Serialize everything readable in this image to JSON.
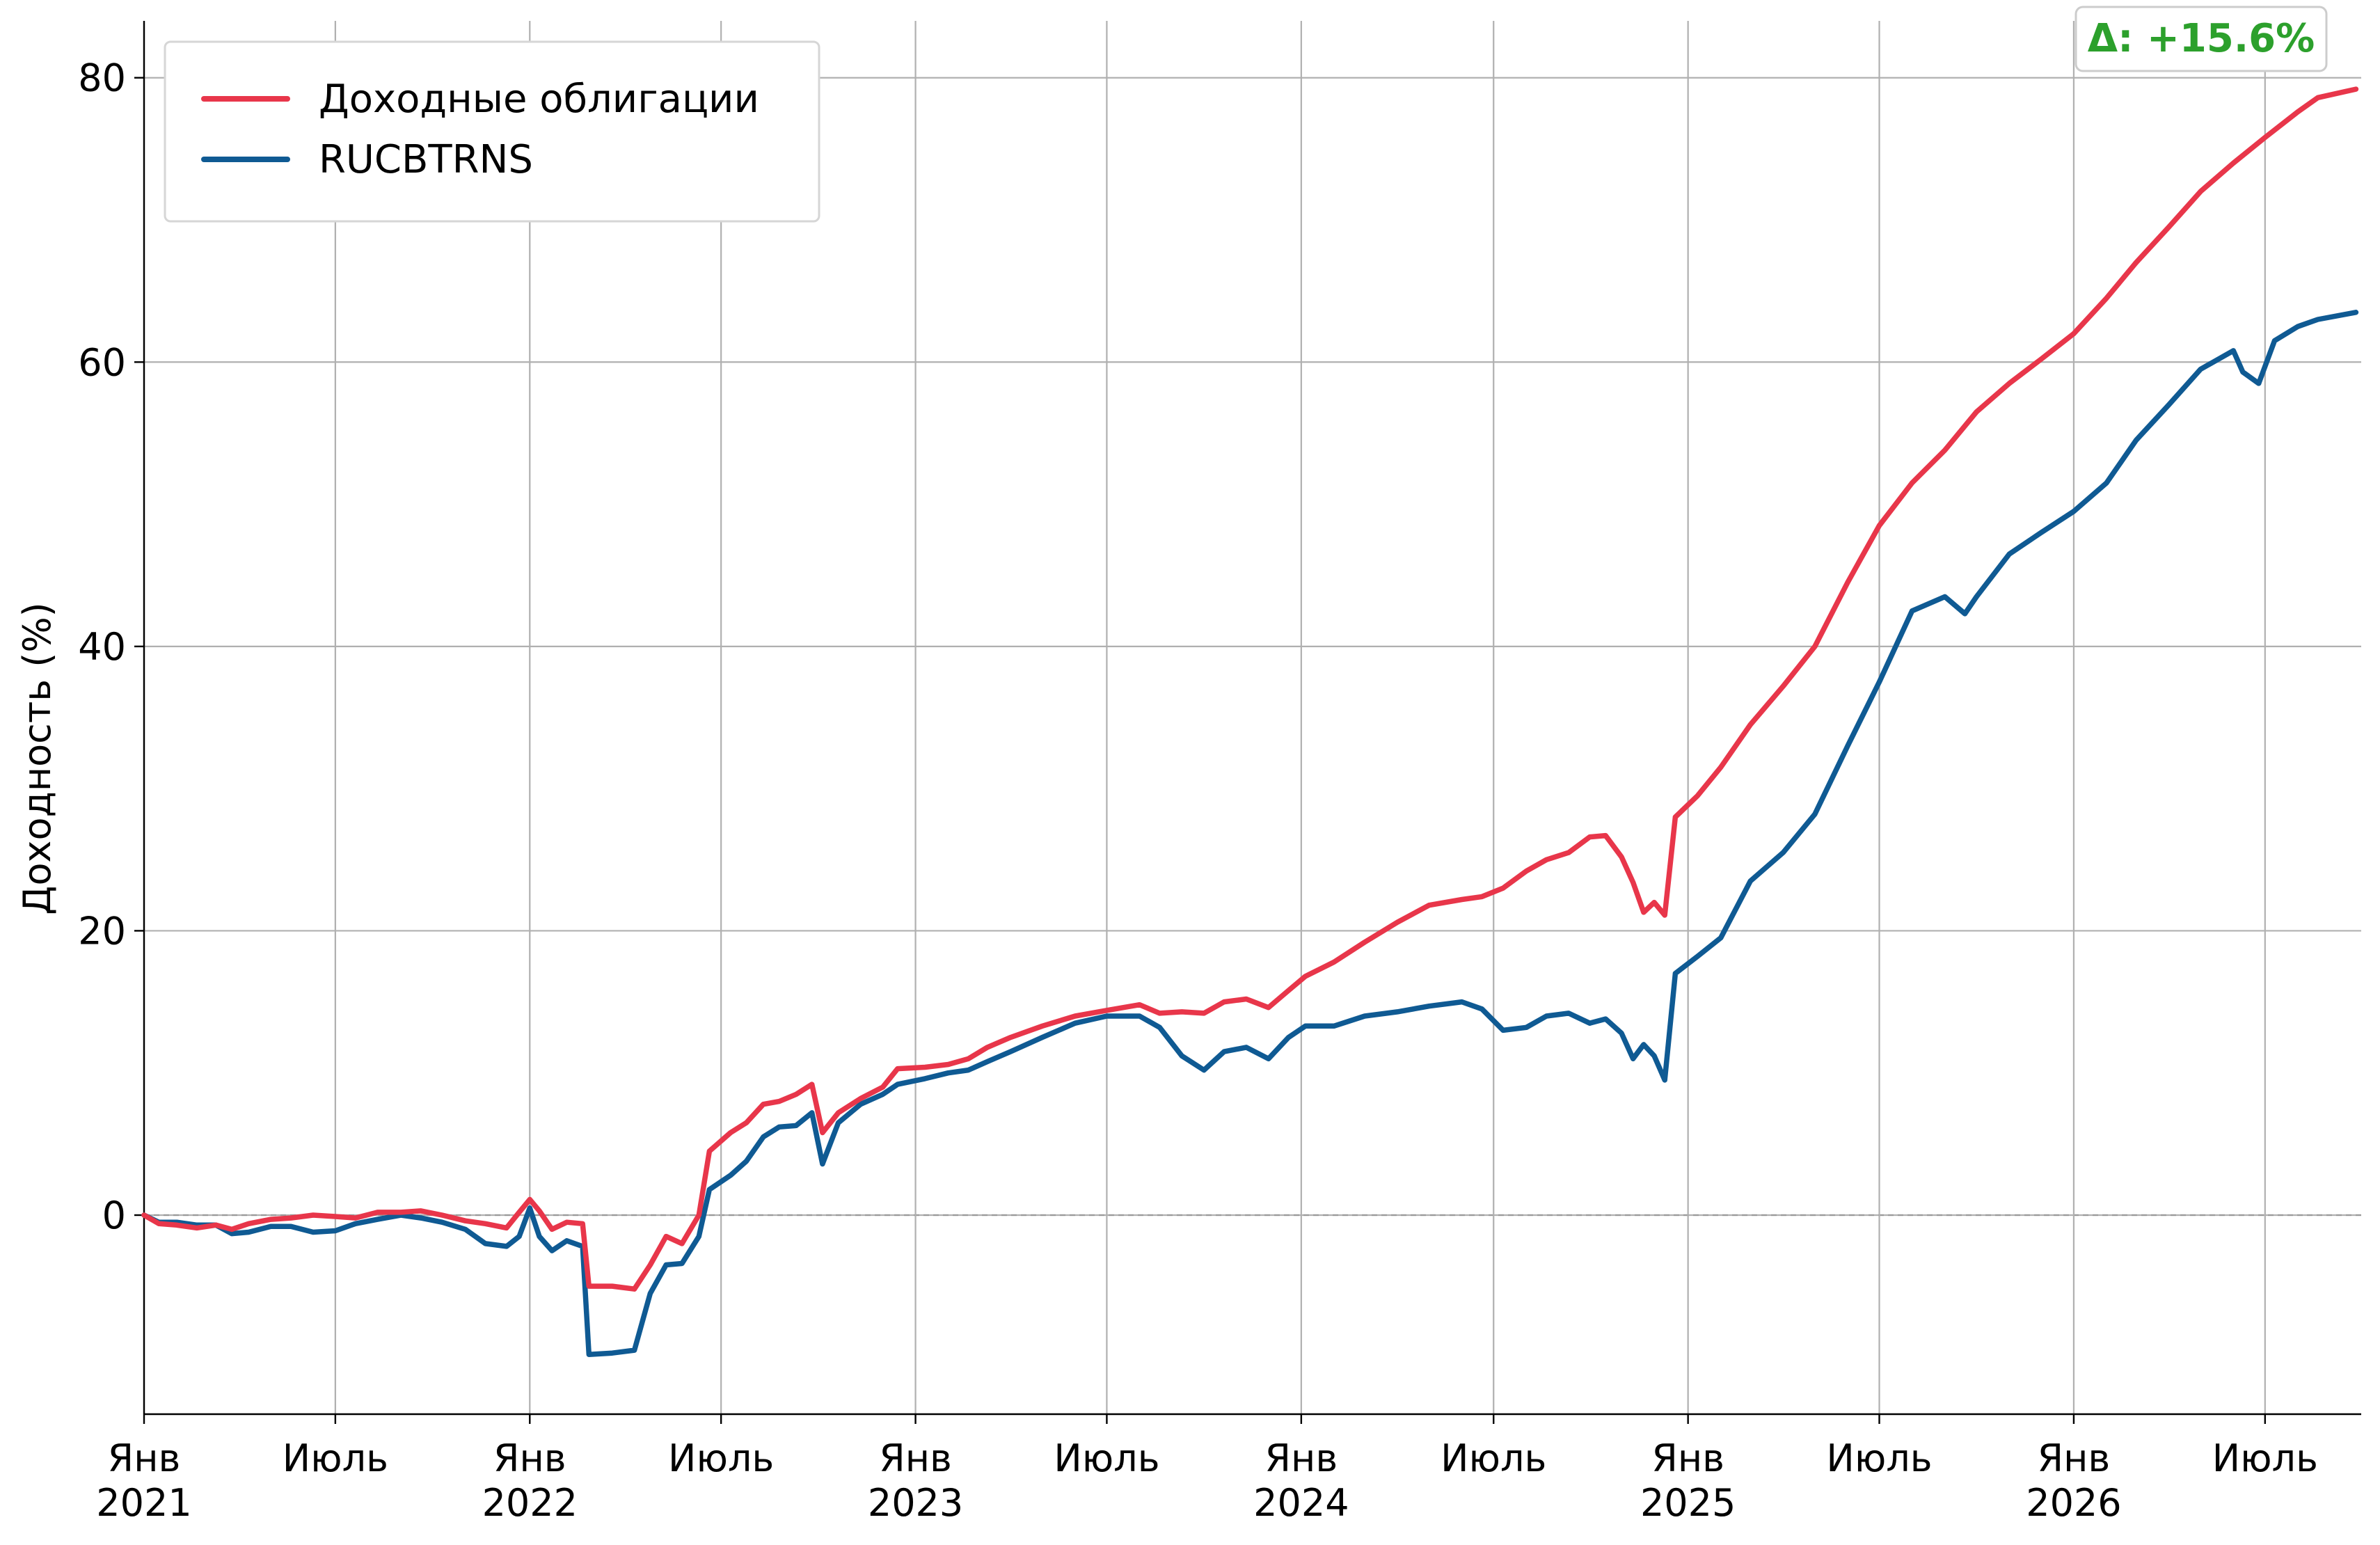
{
  "chart_data": {
    "type": "line",
    "title": "",
    "xlabel": "",
    "ylabel": "Доходность (%)",
    "ylim": [
      -14,
      84
    ],
    "xlim": [
      "2021-01-01",
      "2026-09-30"
    ],
    "yticks": [
      0,
      20,
      40,
      60,
      80
    ],
    "xticks": [
      {
        "date": "2021-01-01",
        "label": [
          "Янв",
          "2021"
        ]
      },
      {
        "date": "2021-07-01",
        "label": [
          "Июль",
          ""
        ]
      },
      {
        "date": "2022-01-01",
        "label": [
          "Янв",
          "2022"
        ]
      },
      {
        "date": "2022-07-01",
        "label": [
          "Июль",
          ""
        ]
      },
      {
        "date": "2023-01-01",
        "label": [
          "Янв",
          "2023"
        ]
      },
      {
        "date": "2023-07-01",
        "label": [
          "Июль",
          ""
        ]
      },
      {
        "date": "2024-01-01",
        "label": [
          "Янв",
          "2024"
        ]
      },
      {
        "date": "2024-07-01",
        "label": [
          "Июль",
          ""
        ]
      },
      {
        "date": "2025-01-01",
        "label": [
          "Янв",
          "2025"
        ]
      },
      {
        "date": "2025-07-01",
        "label": [
          "Июль",
          ""
        ]
      },
      {
        "date": "2026-01-01",
        "label": [
          "Янв",
          "2026"
        ]
      },
      {
        "date": "2026-07-01",
        "label": [
          "Июль",
          ""
        ]
      }
    ],
    "grid": true,
    "zero_line": "dashed",
    "legend_position": "top-left",
    "annotation": {
      "text": "Δ: +15.6%",
      "position": "top-right",
      "color": "#2ca02c"
    },
    "series": [
      {
        "name": "Доходные облигации",
        "color": "#e8364a",
        "points": [
          [
            "2021-01-01",
            0
          ],
          [
            "2021-01-15",
            -0.6
          ],
          [
            "2021-02-01",
            -0.7
          ],
          [
            "2021-02-20",
            -0.9
          ],
          [
            "2021-03-10",
            -0.7
          ],
          [
            "2021-03-25",
            -1.0
          ],
          [
            "2021-04-10",
            -0.6
          ],
          [
            "2021-05-01",
            -0.3
          ],
          [
            "2021-05-20",
            -0.2
          ],
          [
            "2021-06-10",
            0.0
          ],
          [
            "2021-07-01",
            -0.1
          ],
          [
            "2021-07-20",
            -0.2
          ],
          [
            "2021-08-10",
            0.2
          ],
          [
            "2021-09-01",
            0.2
          ],
          [
            "2021-09-20",
            0.3
          ],
          [
            "2021-10-10",
            0.0
          ],
          [
            "2021-11-01",
            -0.4
          ],
          [
            "2021-11-20",
            -0.6
          ],
          [
            "2021-12-10",
            -0.9
          ],
          [
            "2021-12-22",
            0.2
          ],
          [
            "2022-01-01",
            1.1
          ],
          [
            "2022-01-10",
            0.3
          ],
          [
            "2022-01-22",
            -1.0
          ],
          [
            "2022-02-05",
            -0.5
          ],
          [
            "2022-02-20",
            -0.6
          ],
          [
            "2022-02-26",
            -5.0
          ],
          [
            "2022-03-20",
            -5.0
          ],
          [
            "2022-04-10",
            -5.2
          ],
          [
            "2022-04-25",
            -3.5
          ],
          [
            "2022-05-10",
            -1.5
          ],
          [
            "2022-05-25",
            -2.0
          ],
          [
            "2022-06-10",
            0.0
          ],
          [
            "2022-06-20",
            4.5
          ],
          [
            "2022-07-10",
            5.8
          ],
          [
            "2022-07-25",
            6.5
          ],
          [
            "2022-08-10",
            7.8
          ],
          [
            "2022-08-25",
            8.0
          ],
          [
            "2022-09-10",
            8.5
          ],
          [
            "2022-09-25",
            9.2
          ],
          [
            "2022-10-05",
            5.8
          ],
          [
            "2022-10-20",
            7.2
          ],
          [
            "2022-11-10",
            8.2
          ],
          [
            "2022-12-01",
            9.0
          ],
          [
            "2022-12-15",
            10.3
          ],
          [
            "2023-01-10",
            10.4
          ],
          [
            "2023-02-01",
            10.6
          ],
          [
            "2023-02-20",
            11.0
          ],
          [
            "2023-03-10",
            11.8
          ],
          [
            "2023-04-01",
            12.5
          ],
          [
            "2023-05-01",
            13.3
          ],
          [
            "2023-06-01",
            14.0
          ],
          [
            "2023-07-01",
            14.4
          ],
          [
            "2023-08-01",
            14.8
          ],
          [
            "2023-08-20",
            14.2
          ],
          [
            "2023-09-10",
            14.3
          ],
          [
            "2023-10-01",
            14.2
          ],
          [
            "2023-10-20",
            15.0
          ],
          [
            "2023-11-10",
            15.2
          ],
          [
            "2023-12-01",
            14.6
          ],
          [
            "2023-12-20",
            15.8
          ],
          [
            "2024-01-05",
            16.8
          ],
          [
            "2024-02-01",
            17.8
          ],
          [
            "2024-03-01",
            19.2
          ],
          [
            "2024-04-01",
            20.6
          ],
          [
            "2024-05-01",
            21.8
          ],
          [
            "2024-06-01",
            22.2
          ],
          [
            "2024-06-20",
            22.4
          ],
          [
            "2024-07-10",
            23.0
          ],
          [
            "2024-08-01",
            24.2
          ],
          [
            "2024-08-20",
            25.0
          ],
          [
            "2024-09-10",
            25.5
          ],
          [
            "2024-09-30",
            26.6
          ],
          [
            "2024-10-15",
            26.7
          ],
          [
            "2024-10-30",
            25.2
          ],
          [
            "2024-11-10",
            23.4
          ],
          [
            "2024-11-20",
            21.3
          ],
          [
            "2024-11-30",
            22.0
          ],
          [
            "2024-12-10",
            21.1
          ],
          [
            "2024-12-20",
            28.0
          ],
          [
            "2025-01-10",
            29.5
          ],
          [
            "2025-02-01",
            31.5
          ],
          [
            "2025-03-01",
            34.5
          ],
          [
            "2025-04-01",
            37.2
          ],
          [
            "2025-05-01",
            40.0
          ],
          [
            "2025-06-01",
            44.5
          ],
          [
            "2025-07-01",
            48.5
          ],
          [
            "2025-08-01",
            51.5
          ],
          [
            "2025-09-01",
            53.8
          ],
          [
            "2025-10-01",
            56.5
          ],
          [
            "2025-11-01",
            58.5
          ],
          [
            "2025-12-01",
            60.2
          ],
          [
            "2026-01-01",
            62.0
          ],
          [
            "2026-02-01",
            64.5
          ],
          [
            "2026-03-01",
            67.0
          ],
          [
            "2026-04-01",
            69.5
          ],
          [
            "2026-05-01",
            72.0
          ],
          [
            "2026-06-01",
            74.0
          ],
          [
            "2026-07-01",
            75.8
          ],
          [
            "2026-08-01",
            77.6
          ],
          [
            "2026-08-20",
            78.6
          ],
          [
            "2026-09-25",
            79.2
          ]
        ]
      },
      {
        "name": "RUCBTRNS",
        "color": "#0f5a93",
        "points": [
          [
            "2021-01-01",
            0
          ],
          [
            "2021-01-15",
            -0.5
          ],
          [
            "2021-02-01",
            -0.5
          ],
          [
            "2021-02-20",
            -0.7
          ],
          [
            "2021-03-10",
            -0.7
          ],
          [
            "2021-03-25",
            -1.3
          ],
          [
            "2021-04-10",
            -1.2
          ],
          [
            "2021-05-01",
            -0.8
          ],
          [
            "2021-05-20",
            -0.8
          ],
          [
            "2021-06-10",
            -1.2
          ],
          [
            "2021-07-01",
            -1.1
          ],
          [
            "2021-07-20",
            -0.6
          ],
          [
            "2021-08-10",
            -0.3
          ],
          [
            "2021-09-01",
            0.0
          ],
          [
            "2021-09-20",
            -0.2
          ],
          [
            "2021-10-10",
            -0.5
          ],
          [
            "2021-11-01",
            -1.0
          ],
          [
            "2021-11-20",
            -2.0
          ],
          [
            "2021-12-10",
            -2.2
          ],
          [
            "2021-12-22",
            -1.5
          ],
          [
            "2022-01-01",
            0.5
          ],
          [
            "2022-01-10",
            -1.5
          ],
          [
            "2022-01-22",
            -2.5
          ],
          [
            "2022-02-05",
            -1.8
          ],
          [
            "2022-02-20",
            -2.2
          ],
          [
            "2022-02-26",
            -9.8
          ],
          [
            "2022-03-20",
            -9.7
          ],
          [
            "2022-04-10",
            -9.5
          ],
          [
            "2022-04-25",
            -5.5
          ],
          [
            "2022-05-10",
            -3.5
          ],
          [
            "2022-05-25",
            -3.4
          ],
          [
            "2022-06-10",
            -1.5
          ],
          [
            "2022-06-20",
            1.8
          ],
          [
            "2022-07-10",
            2.8
          ],
          [
            "2022-07-25",
            3.8
          ],
          [
            "2022-08-10",
            5.5
          ],
          [
            "2022-08-25",
            6.2
          ],
          [
            "2022-09-10",
            6.3
          ],
          [
            "2022-09-25",
            7.2
          ],
          [
            "2022-10-05",
            3.6
          ],
          [
            "2022-10-20",
            6.5
          ],
          [
            "2022-11-10",
            7.8
          ],
          [
            "2022-12-01",
            8.5
          ],
          [
            "2022-12-15",
            9.2
          ],
          [
            "2023-01-10",
            9.6
          ],
          [
            "2023-02-01",
            10.0
          ],
          [
            "2023-02-20",
            10.2
          ],
          [
            "2023-03-10",
            10.8
          ],
          [
            "2023-04-01",
            11.5
          ],
          [
            "2023-05-01",
            12.5
          ],
          [
            "2023-06-01",
            13.5
          ],
          [
            "2023-07-01",
            14.0
          ],
          [
            "2023-08-01",
            14.0
          ],
          [
            "2023-08-20",
            13.2
          ],
          [
            "2023-09-10",
            11.2
          ],
          [
            "2023-10-01",
            10.2
          ],
          [
            "2023-10-20",
            11.5
          ],
          [
            "2023-11-10",
            11.8
          ],
          [
            "2023-12-01",
            11.0
          ],
          [
            "2023-12-20",
            12.5
          ],
          [
            "2024-01-05",
            13.3
          ],
          [
            "2024-02-01",
            13.3
          ],
          [
            "2024-03-01",
            14.0
          ],
          [
            "2024-04-01",
            14.3
          ],
          [
            "2024-05-01",
            14.7
          ],
          [
            "2024-06-01",
            15.0
          ],
          [
            "2024-06-20",
            14.5
          ],
          [
            "2024-07-10",
            13.0
          ],
          [
            "2024-08-01",
            13.2
          ],
          [
            "2024-08-20",
            14.0
          ],
          [
            "2024-09-10",
            14.2
          ],
          [
            "2024-09-30",
            13.5
          ],
          [
            "2024-10-15",
            13.8
          ],
          [
            "2024-10-30",
            12.8
          ],
          [
            "2024-11-10",
            11.0
          ],
          [
            "2024-11-20",
            12.0
          ],
          [
            "2024-11-30",
            11.2
          ],
          [
            "2024-12-10",
            9.5
          ],
          [
            "2024-12-20",
            17.0
          ],
          [
            "2025-01-10",
            18.2
          ],
          [
            "2025-02-01",
            19.5
          ],
          [
            "2025-03-01",
            23.5
          ],
          [
            "2025-04-01",
            25.5
          ],
          [
            "2025-05-01",
            28.2
          ],
          [
            "2025-06-01",
            33.0
          ],
          [
            "2025-07-01",
            37.5
          ],
          [
            "2025-08-01",
            42.5
          ],
          [
            "2025-09-01",
            43.5
          ],
          [
            "2025-09-20",
            42.3
          ],
          [
            "2025-10-01",
            43.5
          ],
          [
            "2025-11-01",
            46.5
          ],
          [
            "2025-12-01",
            48.0
          ],
          [
            "2026-01-01",
            49.5
          ],
          [
            "2026-02-01",
            51.5
          ],
          [
            "2026-03-01",
            54.5
          ],
          [
            "2026-04-01",
            57.0
          ],
          [
            "2026-05-01",
            59.5
          ],
          [
            "2026-06-01",
            60.8
          ],
          [
            "2026-06-10",
            59.3
          ],
          [
            "2026-06-25",
            58.5
          ],
          [
            "2026-07-10",
            61.5
          ],
          [
            "2026-08-01",
            62.5
          ],
          [
            "2026-08-20",
            63.0
          ],
          [
            "2026-09-25",
            63.5
          ]
        ]
      }
    ]
  }
}
